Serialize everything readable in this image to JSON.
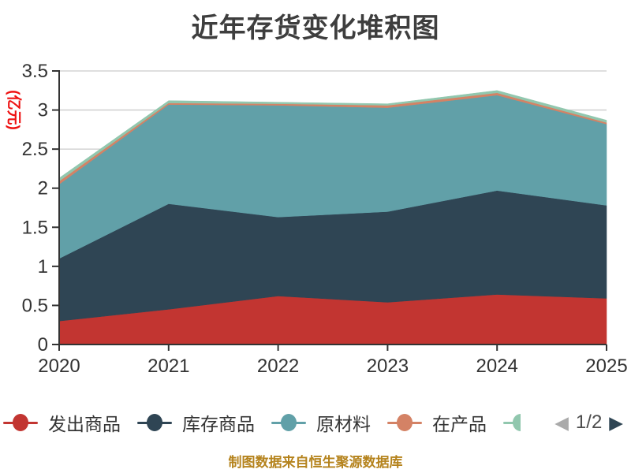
{
  "title": "近年存货变化堆积图",
  "y_axis": {
    "name": "(亿元)",
    "name_color": "#ee1111",
    "ticks": [
      "0",
      "0.5",
      "1",
      "1.5",
      "2",
      "2.5",
      "3",
      "3.5"
    ],
    "max": 3.5,
    "label_color": "#333333",
    "grid_color": "#cccccc",
    "axis_color": "#333333"
  },
  "x_axis": {
    "labels": [
      "2020",
      "2021",
      "2022",
      "2023",
      "2024",
      "2025"
    ],
    "label_color": "#333333"
  },
  "chart_data": {
    "type": "area",
    "stacked": true,
    "title": "近年存货变化堆积图",
    "xlabel": "",
    "ylabel": "(亿元)",
    "ylim": [
      0,
      3.5
    ],
    "grid": true,
    "legend_position": "bottom",
    "categories": [
      "2020",
      "2021",
      "2022",
      "2023",
      "2024",
      "2025"
    ],
    "series": [
      {
        "name": "发出商品",
        "slug": "goods-shipped",
        "color": "#c23531",
        "values": [
          0.3,
          0.45,
          0.62,
          0.54,
          0.64,
          0.59
        ]
      },
      {
        "name": "库存商品",
        "slug": "goods-in-stock",
        "color": "#2f4554",
        "values": [
          0.8,
          1.35,
          1.01,
          1.16,
          1.33,
          1.19
        ]
      },
      {
        "name": "原材料",
        "slug": "raw-materials",
        "color": "#61a0a8",
        "values": [
          0.95,
          1.27,
          1.43,
          1.33,
          1.22,
          1.04
        ]
      },
      {
        "name": "在产品",
        "slug": "work-in-process",
        "color": "#d48265",
        "values": [
          0.04,
          0.02,
          0.02,
          0.03,
          0.03,
          0.02
        ]
      },
      {
        "name": "",
        "slug": "series-5",
        "color": "#91c7ae",
        "values": [
          0.04,
          0.03,
          0.02,
          0.02,
          0.03,
          0.03
        ]
      }
    ]
  },
  "legend": {
    "items": [
      {
        "label": "发出商品",
        "color": "#c23531"
      },
      {
        "label": "库存商品",
        "color": "#2f4554"
      },
      {
        "label": "原材料",
        "color": "#61a0a8"
      },
      {
        "label": "在产品",
        "color": "#d48265"
      }
    ],
    "truncated_item_color": "#91c7ae",
    "page": "1/2",
    "prev_icon": "◀",
    "next_icon": "▶"
  },
  "footer": {
    "text": "制图数据来自恒生聚源数据库",
    "color": "#b5831d"
  }
}
